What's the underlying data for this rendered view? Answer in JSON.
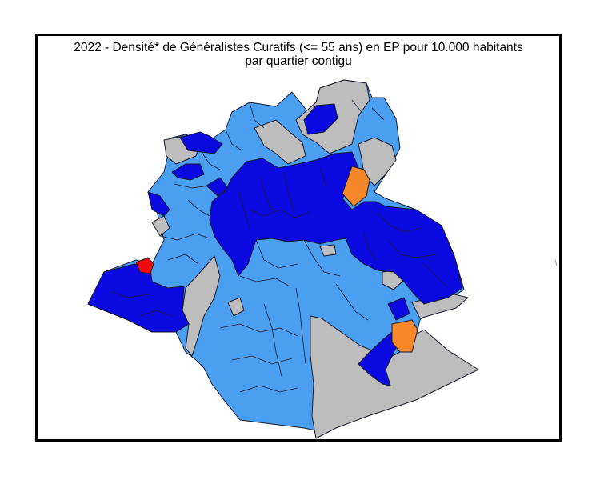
{
  "map": {
    "title_line1": "2022 - Densité* de Généralistes Curatifs (<= 55 ans) en EP pour 10.000 habitants",
    "title_line2": "par quartier contigu"
  },
  "colors": {
    "no_data": "#bdbdbd",
    "light_blue": "#4a9ff0",
    "dark_blue": "#0a0ae0",
    "orange": "#f7882a",
    "red": "#ee0a0a",
    "borders": "#1a1a2e"
  }
}
